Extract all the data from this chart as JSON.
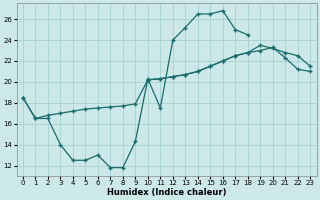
{
  "xlabel": "Humidex (Indice chaleur)",
  "xlim": [
    -0.5,
    23.5
  ],
  "ylim": [
    11.0,
    27.5
  ],
  "xticks": [
    0,
    1,
    2,
    3,
    4,
    5,
    6,
    7,
    8,
    9,
    10,
    11,
    12,
    13,
    14,
    15,
    16,
    17,
    18,
    19,
    20,
    21,
    22,
    23
  ],
  "yticks": [
    12,
    14,
    16,
    18,
    20,
    22,
    24,
    26
  ],
  "bg_color": "#cce8e8",
  "grid_color": "#aad4d4",
  "line_color": "#1a6b6b",
  "line1_x": [
    0,
    1,
    2,
    3,
    4,
    5,
    6,
    7,
    8,
    9,
    10,
    11,
    12,
    13,
    14,
    15,
    16,
    17,
    18
  ],
  "line1_y": [
    18.5,
    16.5,
    16.5,
    14.0,
    12.5,
    12.5,
    13.0,
    11.8,
    11.8,
    14.3,
    20.3,
    17.5,
    24.0,
    25.2,
    26.5,
    26.5,
    26.8,
    25.0,
    24.5
  ],
  "line2_x": [
    0,
    1,
    2,
    3,
    4,
    5,
    6,
    7,
    8,
    9,
    10,
    11,
    12,
    13,
    14,
    15,
    16,
    17,
    18,
    19,
    20,
    21,
    22,
    23
  ],
  "line2_y": [
    18.5,
    16.5,
    16.8,
    17.0,
    17.2,
    17.4,
    17.5,
    17.6,
    17.7,
    17.9,
    20.2,
    20.3,
    20.5,
    20.7,
    21.0,
    21.5,
    22.0,
    22.5,
    22.8,
    23.0,
    23.3,
    22.3,
    21.2,
    21.0
  ],
  "line3_x": [
    10,
    11,
    12,
    13,
    14,
    15,
    16,
    17,
    18,
    19,
    20,
    21,
    22,
    23
  ],
  "line3_y": [
    20.2,
    20.3,
    20.5,
    20.7,
    21.0,
    21.5,
    22.0,
    22.5,
    22.8,
    23.5,
    23.2,
    22.8,
    22.5,
    21.5
  ]
}
